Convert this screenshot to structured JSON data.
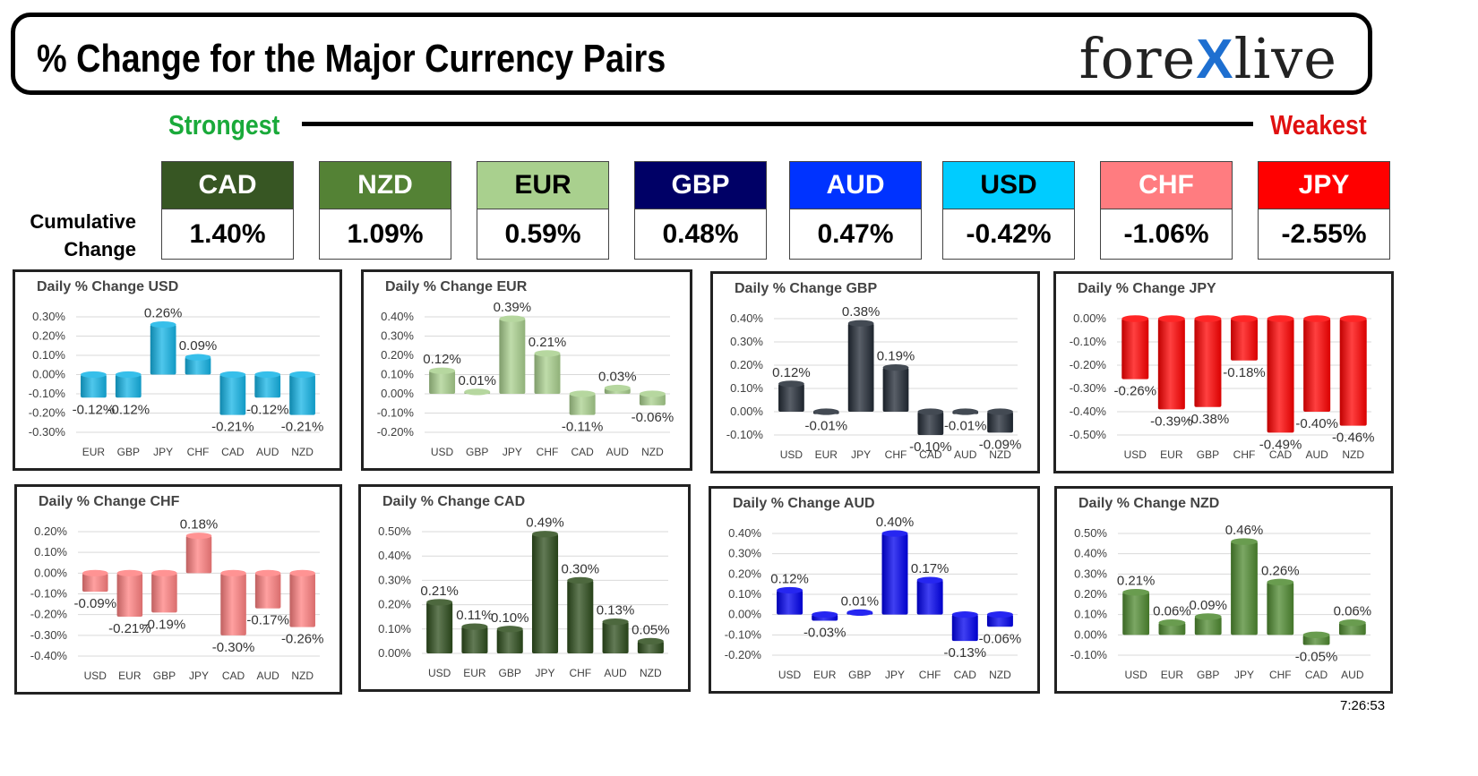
{
  "header": {
    "title": "% Change for the Major Currency Pairs",
    "logo_left": "fore",
    "logo_x": "X",
    "logo_right": "live"
  },
  "ranking": {
    "strongest_label": "Strongest",
    "weakest_label": "Weakest",
    "cumulative_label_line1": "Cumulative",
    "cumulative_label_line2": "Change",
    "items": [
      {
        "currency": "CAD",
        "value": "1.40%",
        "bg": "#375623",
        "fg": "#ffffff"
      },
      {
        "currency": "NZD",
        "value": "1.09%",
        "bg": "#548235",
        "fg": "#ffffff"
      },
      {
        "currency": "EUR",
        "value": "0.59%",
        "bg": "#a9d08e",
        "fg": "#000000"
      },
      {
        "currency": "GBP",
        "value": "0.48%",
        "bg": "#000066",
        "fg": "#ffffff"
      },
      {
        "currency": "AUD",
        "value": "0.47%",
        "bg": "#0033ff",
        "fg": "#ffffff"
      },
      {
        "currency": "USD",
        "value": "-0.42%",
        "bg": "#00ccff",
        "fg": "#000000"
      },
      {
        "currency": "CHF",
        "value": "-1.06%",
        "bg": "#ff7c80",
        "fg": "#ffffff"
      },
      {
        "currency": "JPY",
        "value": "-2.55%",
        "bg": "#ff0000",
        "fg": "#ffffff"
      }
    ]
  },
  "chart_data": [
    {
      "type": "bar",
      "title": "Daily % Change USD",
      "color": "#14b4e6",
      "categories": [
        "EUR",
        "GBP",
        "JPY",
        "CHF",
        "CAD",
        "AUD",
        "NZD"
      ],
      "values": [
        -0.12,
        -0.12,
        0.26,
        0.09,
        -0.21,
        -0.12,
        -0.21
      ],
      "labels": [
        "-0.12%",
        "-0.12%",
        "0.26%",
        "0.09%",
        "-0.21%",
        "-0.12%",
        "-0.21%"
      ],
      "yticks": [
        "0.30%",
        "0.20%",
        "0.10%",
        "0.00%",
        "-0.10%",
        "-0.20%",
        "-0.30%"
      ],
      "ylim": [
        -0.3,
        0.3
      ],
      "ytick_values": [
        0.3,
        0.2,
        0.1,
        0.0,
        -0.1,
        -0.2,
        -0.3
      ]
    },
    {
      "type": "bar",
      "title": "Daily % Change EUR",
      "color": "#a9d08e",
      "categories": [
        "USD",
        "GBP",
        "JPY",
        "CHF",
        "CAD",
        "AUD",
        "NZD"
      ],
      "values": [
        0.12,
        0.01,
        0.39,
        0.21,
        -0.11,
        0.03,
        -0.06
      ],
      "labels": [
        "0.12%",
        "0.01%",
        "0.39%",
        "0.21%",
        "-0.11%",
        "0.03%",
        "-0.06%"
      ],
      "yticks": [
        "0.40%",
        "0.30%",
        "0.20%",
        "0.10%",
        "0.00%",
        "-0.10%",
        "-0.20%"
      ],
      "ylim": [
        -0.2,
        0.4
      ],
      "ytick_values": [
        0.4,
        0.3,
        0.2,
        0.1,
        0.0,
        -0.1,
        -0.2
      ]
    },
    {
      "type": "bar",
      "title": "Daily % Change GBP",
      "color": "#222a35",
      "categories": [
        "USD",
        "EUR",
        "JPY",
        "CHF",
        "CAD",
        "AUD",
        "NZD"
      ],
      "values": [
        0.12,
        -0.01,
        0.38,
        0.19,
        -0.1,
        -0.01,
        -0.09
      ],
      "labels": [
        "0.12%",
        "-0.01%",
        "0.38%",
        "0.19%",
        "-0.10%",
        "-0.01%",
        "-0.09%"
      ],
      "yticks": [
        "0.40%",
        "0.30%",
        "0.20%",
        "0.10%",
        "0.00%",
        "-0.10%"
      ],
      "ylim": [
        -0.1,
        0.4
      ],
      "ytick_values": [
        0.4,
        0.3,
        0.2,
        0.1,
        0.0,
        -0.1
      ]
    },
    {
      "type": "bar",
      "title": "Daily % Change JPY",
      "color": "#ff0000",
      "categories": [
        "USD",
        "EUR",
        "GBP",
        "CHF",
        "CAD",
        "AUD",
        "NZD"
      ],
      "values": [
        -0.26,
        -0.39,
        -0.38,
        -0.18,
        -0.49,
        -0.4,
        -0.46
      ],
      "labels": [
        "-0.26%",
        "-0.39%",
        "-0.38%",
        "-0.18%",
        "-0.49%",
        "-0.40%",
        "-0.46%"
      ],
      "yticks": [
        "0.00%",
        "-0.10%",
        "-0.20%",
        "-0.30%",
        "-0.40%",
        "-0.50%"
      ],
      "ylim": [
        -0.5,
        0.0
      ],
      "ytick_values": [
        0.0,
        -0.1,
        -0.2,
        -0.3,
        -0.4,
        -0.5
      ]
    },
    {
      "type": "bar",
      "title": "Daily % Change CHF",
      "color": "#ff8080",
      "categories": [
        "USD",
        "EUR",
        "GBP",
        "JPY",
        "CAD",
        "AUD",
        "NZD"
      ],
      "values": [
        -0.09,
        -0.21,
        -0.19,
        0.18,
        -0.3,
        -0.17,
        -0.26
      ],
      "labels": [
        "-0.09%",
        "-0.21%",
        "-0.19%",
        "0.18%",
        "-0.30%",
        "-0.17%",
        "-0.26%"
      ],
      "yticks": [
        "0.20%",
        "0.10%",
        "0.00%",
        "-0.10%",
        "-0.20%",
        "-0.30%",
        "-0.40%"
      ],
      "ylim": [
        -0.4,
        0.2
      ],
      "ytick_values": [
        0.2,
        0.1,
        0.0,
        -0.1,
        -0.2,
        -0.3,
        -0.4
      ]
    },
    {
      "type": "bar",
      "title": "Daily % Change CAD",
      "color": "#2d4d1c",
      "categories": [
        "USD",
        "EUR",
        "GBP",
        "JPY",
        "CHF",
        "AUD",
        "NZD"
      ],
      "values": [
        0.21,
        0.11,
        0.1,
        0.49,
        0.3,
        0.13,
        0.05
      ],
      "labels": [
        "0.21%",
        "0.11%",
        "0.10%",
        "0.49%",
        "0.30%",
        "0.13%",
        "0.05%"
      ],
      "yticks": [
        "0.50%",
        "0.40%",
        "0.30%",
        "0.20%",
        "0.10%",
        "0.00%"
      ],
      "ylim": [
        0.0,
        0.5
      ],
      "ytick_values": [
        0.5,
        0.4,
        0.3,
        0.2,
        0.1,
        0.0
      ]
    },
    {
      "type": "bar",
      "title": "Daily % Change AUD",
      "color": "#0000ee",
      "categories": [
        "USD",
        "EUR",
        "GBP",
        "JPY",
        "CHF",
        "CAD",
        "NZD"
      ],
      "values": [
        0.12,
        -0.03,
        0.01,
        0.4,
        0.17,
        -0.13,
        -0.06
      ],
      "labels": [
        "0.12%",
        "-0.03%",
        "0.01%",
        "0.40%",
        "0.17%",
        "-0.13%",
        "-0.06%"
      ],
      "yticks": [
        "0.40%",
        "0.30%",
        "0.20%",
        "0.10%",
        "0.00%",
        "-0.10%",
        "-0.20%"
      ],
      "ylim": [
        -0.2,
        0.4
      ],
      "ytick_values": [
        0.4,
        0.3,
        0.2,
        0.1,
        0.0,
        -0.1,
        -0.2
      ]
    },
    {
      "type": "bar",
      "title": "Daily % Change NZD",
      "color": "#4f8a30",
      "categories": [
        "USD",
        "EUR",
        "GBP",
        "JPY",
        "CHF",
        "CAD",
        "AUD"
      ],
      "values": [
        0.21,
        0.06,
        0.09,
        0.46,
        0.26,
        -0.05,
        0.06
      ],
      "labels": [
        "0.21%",
        "0.06%",
        "0.09%",
        "0.46%",
        "0.26%",
        "-0.05%",
        "0.06%"
      ],
      "yticks": [
        "0.50%",
        "0.40%",
        "0.30%",
        "0.20%",
        "0.10%",
        "0.00%",
        "-0.10%"
      ],
      "ylim": [
        -0.1,
        0.5
      ],
      "ytick_values": [
        0.5,
        0.4,
        0.3,
        0.2,
        0.1,
        0.0,
        -0.1
      ]
    }
  ],
  "timestamp": "7:26:53"
}
